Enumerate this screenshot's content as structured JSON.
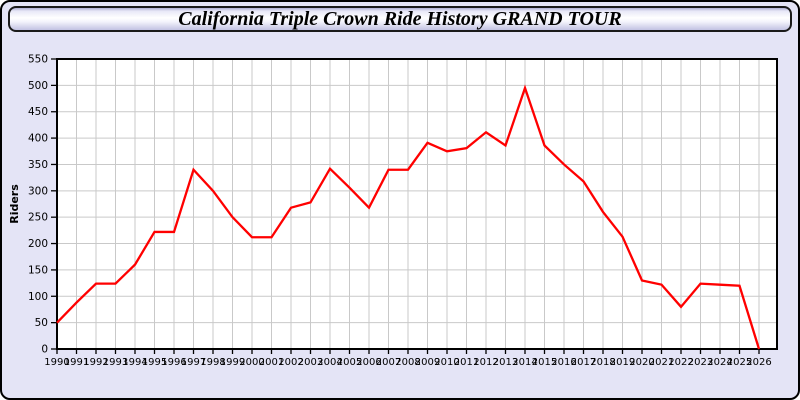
{
  "chart_data": {
    "type": "line",
    "title": "California Triple Crown Ride History GRAND TOUR",
    "xlabel": "",
    "ylabel": "Riders",
    "x": [
      1990,
      1991,
      1992,
      1993,
      1994,
      1995,
      1996,
      1997,
      1998,
      1999,
      2000,
      2001,
      2002,
      2003,
      2004,
      2005,
      2006,
      2007,
      2008,
      2009,
      2010,
      2011,
      2012,
      2013,
      2014,
      2015,
      2016,
      2017,
      2018,
      2019,
      2020,
      2021,
      2022,
      2023,
      2024,
      2025,
      2026
    ],
    "series": [
      {
        "name": "Riders",
        "values": [
          50,
          88,
          124,
          124,
          160,
          222,
          222,
          340,
          300,
          250,
          212,
          212,
          268,
          278,
          342,
          306,
          268,
          340,
          340,
          391,
          375,
          381,
          411,
          386,
          495,
          386,
          350,
          318,
          260,
          213,
          130,
          122,
          80,
          124,
          122,
          120,
          0
        ]
      }
    ],
    "ylim": [
      0,
      550
    ],
    "ytick_step": 50,
    "grid": true,
    "legend_position": "none",
    "line_color": "#ff0000",
    "plot_bg": "#ffffff",
    "grid_color": "#c9c9c9",
    "page_bg": "#e4e4f6",
    "axis_color": "#000000"
  }
}
